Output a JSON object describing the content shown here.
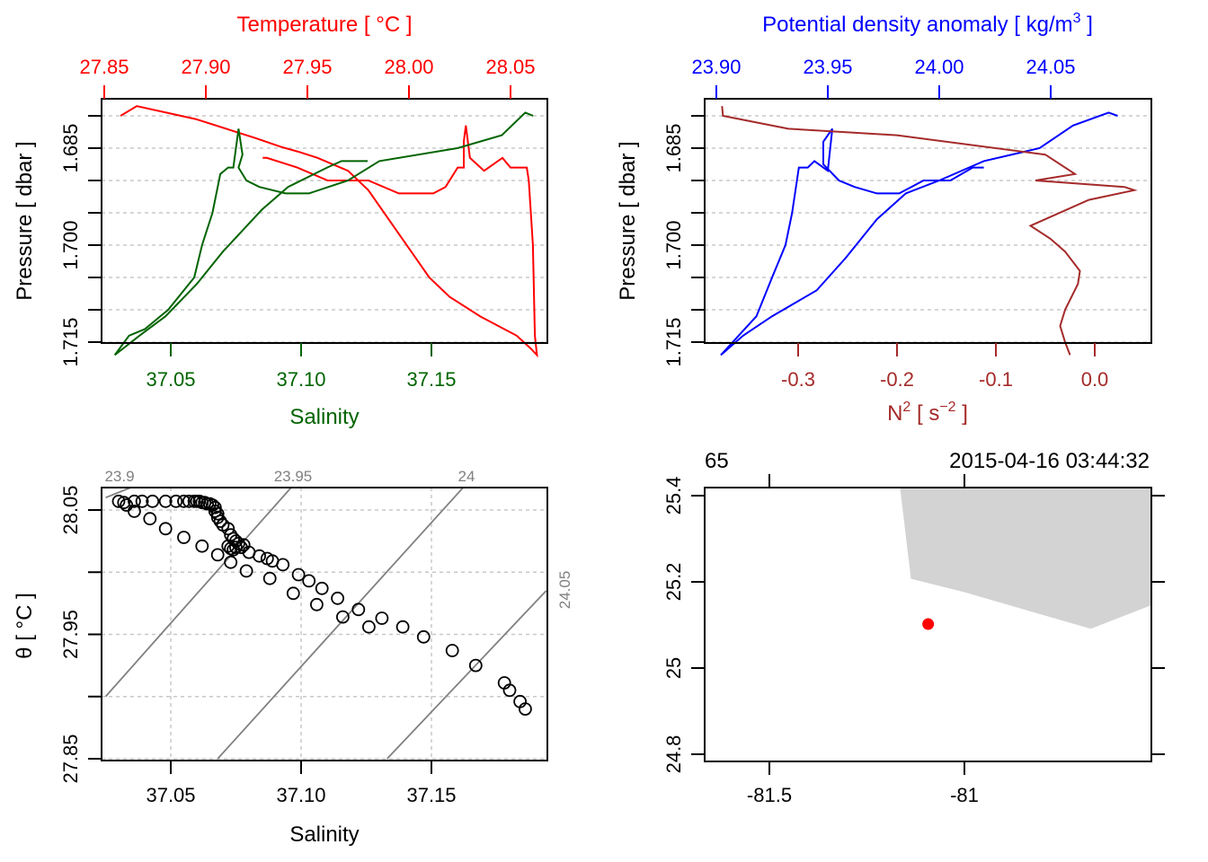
{
  "chart_data": [
    {
      "type": "line",
      "id": "profile-ts",
      "title": "",
      "top_axis": {
        "label": "Temperature [ °C ]",
        "color": "#ff0000",
        "ticks": [
          "27.85",
          "27.90",
          "27.95",
          "28.00",
          "28.05"
        ],
        "tick_values": [
          27.85,
          27.9,
          27.95,
          28.0,
          28.05
        ]
      },
      "bottom_axis": {
        "label": "Salinity",
        "color": "#006400",
        "ticks": [
          "37.05",
          "37.10",
          "37.15"
        ],
        "tick_values": [
          37.05,
          37.1,
          37.15
        ]
      },
      "left_axis": {
        "label": "Pressure [ dbar ]",
        "ticks": [
          "1.685",
          "1.700",
          "1.715"
        ],
        "tick_values": [
          1.685,
          1.7,
          1.715
        ],
        "ylim": [
          1.715,
          1.68
        ]
      },
      "grid_y": [
        1.68,
        1.685,
        1.69,
        1.695,
        1.7,
        1.705,
        1.71,
        1.715
      ],
      "series": [
        {
          "name": "Temperature",
          "color": "#ff0000",
          "axis": "top",
          "points": [
            [
              27.858,
              1.68
            ],
            [
              27.866,
              1.6785
            ],
            [
              27.895,
              1.6805
            ],
            [
              27.925,
              1.6835
            ],
            [
              27.937,
              1.6848
            ],
            [
              27.945,
              1.6855
            ],
            [
              27.955,
              1.6865
            ],
            [
              27.97,
              1.6885
            ],
            [
              27.98,
              1.6915
            ],
            [
              27.99,
              1.696
            ],
            [
              28.0,
              1.7005
            ],
            [
              28.01,
              1.705
            ],
            [
              28.02,
              1.708
            ],
            [
              28.035,
              1.711
            ],
            [
              28.047,
              1.713
            ],
            [
              28.053,
              1.714
            ],
            [
              28.06,
              1.716
            ],
            [
              28.063,
              1.717
            ],
            [
              28.062,
              1.714
            ],
            [
              28.061,
              1.7
            ],
            [
              28.059,
              1.69
            ],
            [
              28.058,
              1.688
            ],
            [
              28.05,
              1.688
            ],
            [
              28.046,
              1.6865
            ],
            [
              28.037,
              1.6885
            ],
            [
              28.03,
              1.6865
            ],
            [
              28.028,
              1.6815
            ],
            [
              28.027,
              1.684
            ],
            [
              28.027,
              1.688
            ],
            [
              28.024,
              1.688
            ],
            [
              28.018,
              1.691
            ],
            [
              28.012,
              1.692
            ],
            [
              27.995,
              1.692
            ],
            [
              27.98,
              1.69
            ],
            [
              27.96,
              1.69
            ],
            [
              27.945,
              1.688
            ],
            [
              27.93,
              1.6865
            ],
            [
              27.928,
              1.6865
            ]
          ]
        },
        {
          "name": "Salinity",
          "color": "#006400",
          "axis": "bottom",
          "points": [
            [
              37.0285,
              1.717
            ],
            [
              37.034,
              1.714
            ],
            [
              37.04,
              1.713
            ],
            [
              37.049,
              1.71
            ],
            [
              37.059,
              1.705
            ],
            [
              37.062,
              1.7
            ],
            [
              37.066,
              1.695
            ],
            [
              37.069,
              1.689
            ],
            [
              37.072,
              1.688
            ],
            [
              37.074,
              1.688
            ],
            [
              37.076,
              1.682
            ],
            [
              37.0775,
              1.686
            ],
            [
              37.076,
              1.688
            ],
            [
              37.079,
              1.69
            ],
            [
              37.084,
              1.691
            ],
            [
              37.094,
              1.692
            ],
            [
              37.103,
              1.692
            ],
            [
              37.118,
              1.69
            ],
            [
              37.13,
              1.687
            ],
            [
              37.16,
              1.685
            ],
            [
              37.177,
              1.683
            ],
            [
              37.186,
              1.6795
            ],
            [
              37.189,
              1.68
            ]
          ]
        },
        {
          "name": "Salinity-up",
          "color": "#006400",
          "axis": "bottom",
          "points": [
            [
              37.0285,
              1.717
            ],
            [
              37.038,
              1.714
            ],
            [
              37.048,
              1.711
            ],
            [
              37.06,
              1.706
            ],
            [
              37.07,
              1.701
            ],
            [
              37.085,
              1.6945
            ],
            [
              37.095,
              1.691
            ],
            [
              37.11,
              1.688
            ],
            [
              37.1155,
              1.687
            ],
            [
              37.1255,
              1.687
            ]
          ]
        }
      ]
    },
    {
      "type": "line",
      "id": "profile-density",
      "top_axis": {
        "label": "Potential density anomaly [ kg/m",
        "label_sup": "3",
        "label_end": " ]",
        "color": "#0000ff",
        "ticks": [
          "23.90",
          "23.95",
          "24.00",
          "24.05"
        ],
        "tick_values": [
          23.9,
          23.95,
          24.0,
          24.05
        ]
      },
      "bottom_axis": {
        "label": "N",
        "label_sup": "2",
        "label_mid": " [ s",
        "label_sup2": "−2",
        "label_end": " ]",
        "color": "#a52a2a",
        "ticks": [
          "-0.3",
          "-0.2",
          "-0.1",
          "0.0"
        ],
        "tick_values": [
          -0.3,
          -0.2,
          -0.1,
          0.0
        ]
      },
      "left_axis": {
        "label": "Pressure [ dbar ]",
        "ticks": [
          "1.685",
          "1.700",
          "1.715"
        ],
        "tick_values": [
          1.685,
          1.7,
          1.715
        ],
        "ylim": [
          1.715,
          1.68
        ]
      },
      "series": [
        {
          "name": "Potential density anomaly",
          "color": "#0000ff",
          "axis": "top",
          "points": [
            [
              23.902,
              1.717
            ],
            [
              23.912,
              1.714
            ],
            [
              23.925,
              1.711
            ],
            [
              23.945,
              1.707
            ],
            [
              23.958,
              1.702
            ],
            [
              23.972,
              1.696
            ],
            [
              23.985,
              1.692
            ],
            [
              24.0,
              1.69
            ],
            [
              24.02,
              1.687
            ],
            [
              24.045,
              1.685
            ],
            [
              24.06,
              1.6815
            ],
            [
              24.076,
              1.6795
            ],
            [
              24.08,
              1.68
            ]
          ]
        },
        {
          "name": "Potential density anomaly-2",
          "color": "#0000ff",
          "axis": "top",
          "points": [
            [
              23.902,
              1.717
            ],
            [
              23.91,
              1.714
            ],
            [
              23.918,
              1.711
            ],
            [
              23.925,
              1.705
            ],
            [
              23.931,
              1.7
            ],
            [
              23.934,
              1.695
            ],
            [
              23.937,
              1.688
            ],
            [
              23.941,
              1.688
            ],
            [
              23.944,
              1.687
            ],
            [
              23.95,
              1.6885
            ],
            [
              23.952,
              1.682
            ],
            [
              23.948,
              1.684
            ],
            [
              23.948,
              1.6875
            ],
            [
              23.955,
              1.69
            ],
            [
              23.962,
              1.691
            ],
            [
              23.972,
              1.692
            ],
            [
              23.982,
              1.692
            ],
            [
              23.993,
              1.69
            ],
            [
              24.005,
              1.69
            ],
            [
              24.015,
              1.688
            ],
            [
              24.02,
              1.688
            ]
          ]
        },
        {
          "name": "N2",
          "color": "#a52a2a",
          "axis": "bottom",
          "points": [
            [
              -0.377,
              1.6785
            ],
            [
              -0.376,
              1.68
            ],
            [
              -0.31,
              1.682
            ],
            [
              -0.2,
              1.683
            ],
            [
              -0.05,
              1.686
            ],
            [
              -0.02,
              1.689
            ],
            [
              -0.06,
              1.69
            ],
            [
              0.03,
              1.691
            ],
            [
              0.04,
              1.6915
            ],
            [
              -0.006,
              1.693
            ],
            [
              -0.065,
              1.697
            ],
            [
              -0.045,
              1.699
            ],
            [
              -0.03,
              1.701
            ],
            [
              -0.015,
              1.704
            ],
            [
              -0.017,
              1.706
            ],
            [
              -0.03,
              1.71
            ],
            [
              -0.035,
              1.7125
            ],
            [
              -0.03,
              1.715
            ],
            [
              -0.025,
              1.717
            ]
          ]
        }
      ]
    },
    {
      "type": "scatter",
      "id": "ts-diagram",
      "xlabel": "Salinity",
      "ylabel": "θ [ °C ]",
      "xticks": [
        "37.05",
        "37.10",
        "37.15"
      ],
      "xtick_values": [
        37.05,
        37.1,
        37.15
      ],
      "yticks": [
        "27.85",
        "27.95",
        "28.05"
      ],
      "ytick_values": [
        27.85,
        27.95,
        28.05
      ],
      "grid_x": [
        37.05,
        37.1,
        37.15
      ],
      "grid_y": [
        27.85,
        27.9,
        27.95,
        28.0,
        28.05
      ],
      "isopycnals": [
        {
          "label": "23.9",
          "s0": 37.025,
          "t0": 28.06,
          "s1": 37.037,
          "t1": 28.07,
          "label_pos": "top"
        },
        {
          "label": "23.95",
          "s0": 37.025,
          "t0": 27.9,
          "s1": 37.097,
          "t1": 28.07,
          "label_pos": "top"
        },
        {
          "label": "24",
          "s0": 37.068,
          "t0": 27.85,
          "s1": 37.163,
          "t1": 28.07,
          "label_pos": "top"
        },
        {
          "label": "24.05",
          "s0": 37.133,
          "t0": 27.85,
          "s1": 37.194,
          "t1": 27.985,
          "label_pos": "right"
        }
      ],
      "points": [
        [
          37.03,
          28.057
        ],
        [
          37.032,
          28.056
        ],
        [
          37.033,
          28.054
        ],
        [
          37.036,
          28.057
        ],
        [
          37.039,
          28.057
        ],
        [
          37.043,
          28.057
        ],
        [
          37.048,
          28.057
        ],
        [
          37.052,
          28.057
        ],
        [
          37.055,
          28.057
        ],
        [
          37.057,
          28.057
        ],
        [
          37.059,
          28.057
        ],
        [
          37.06,
          28.057
        ],
        [
          37.061,
          28.057
        ],
        [
          37.062,
          28.056
        ],
        [
          37.063,
          28.056
        ],
        [
          37.064,
          28.055
        ],
        [
          37.065,
          28.055
        ],
        [
          37.066,
          28.054
        ],
        [
          37.067,
          28.052
        ],
        [
          37.067,
          28.049
        ],
        [
          37.068,
          28.047
        ],
        [
          37.068,
          28.044
        ],
        [
          37.069,
          28.041
        ],
        [
          37.07,
          28.038
        ],
        [
          37.072,
          28.035
        ],
        [
          37.073,
          28.03
        ],
        [
          37.074,
          28.027
        ],
        [
          37.075,
          28.025
        ],
        [
          37.076,
          28.023
        ],
        [
          37.072,
          28.021
        ],
        [
          37.073,
          28.019
        ],
        [
          37.074,
          28.018
        ],
        [
          37.075,
          28.02
        ],
        [
          37.077,
          28.02
        ],
        [
          37.078,
          28.022
        ],
        [
          37.08,
          28.016
        ],
        [
          37.084,
          28.013
        ],
        [
          37.087,
          28.011
        ],
        [
          37.089,
          28.009
        ],
        [
          37.093,
          28.006
        ],
        [
          37.099,
          27.998
        ],
        [
          37.103,
          27.993
        ],
        [
          37.108,
          27.987
        ],
        [
          37.114,
          27.979
        ],
        [
          37.122,
          27.97
        ],
        [
          37.131,
          27.963
        ],
        [
          37.139,
          27.956
        ],
        [
          37.147,
          27.948
        ],
        [
          37.158,
          27.937
        ],
        [
          37.167,
          27.925
        ],
        [
          37.178,
          27.911
        ],
        [
          37.18,
          27.905
        ],
        [
          37.184,
          27.896
        ],
        [
          37.186,
          27.89
        ],
        [
          37.036,
          28.049
        ],
        [
          37.042,
          28.043
        ],
        [
          37.048,
          28.035
        ],
        [
          37.055,
          28.028
        ],
        [
          37.062,
          28.021
        ],
        [
          37.068,
          28.014
        ],
        [
          37.073,
          28.008
        ],
        [
          37.079,
          28.001
        ],
        [
          37.088,
          27.995
        ],
        [
          37.097,
          27.983
        ],
        [
          37.106,
          27.974
        ],
        [
          37.116,
          27.964
        ],
        [
          37.126,
          27.956
        ]
      ],
      "marker": "open-circle",
      "marker_color": "#000000"
    },
    {
      "type": "scatter",
      "id": "station-map",
      "title_left": "65",
      "title_right": "2015-04-16 03:44:32",
      "xticks": [
        "-81.5",
        "-81"
      ],
      "xtick_values": [
        -81.5,
        -81.0
      ],
      "yticks": [
        "24.8",
        "25",
        "25.2",
        "25.4"
      ],
      "ytick_values": [
        24.8,
        25.0,
        25.2,
        25.4
      ],
      "xlim": [
        -81.665,
        -80.52
      ],
      "ylim": [
        24.783,
        25.418
      ],
      "land_polygon": [
        [
          -81.165,
          25.418
        ],
        [
          -81.165,
          25.418
        ],
        [
          -81.0,
          25.418
        ],
        [
          -80.52,
          25.418
        ],
        [
          -80.52,
          25.146
        ],
        [
          -80.676,
          25.091
        ],
        [
          -81.0,
          25.176
        ],
        [
          -81.137,
          25.207
        ],
        [
          -81.165,
          25.418
        ]
      ],
      "land_color": "#d3d3d3",
      "station": {
        "lon": -81.093,
        "lat": 25.102,
        "color": "#ff0000"
      }
    }
  ]
}
